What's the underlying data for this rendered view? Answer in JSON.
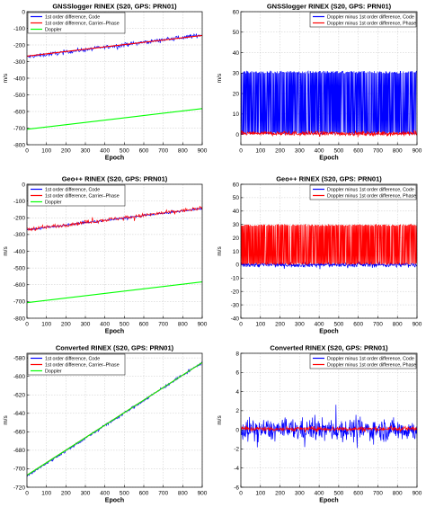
{
  "chart_data": [
    {
      "type": "line",
      "title": "GNSSlogger RINEX (S20, GPS: PRN01)",
      "xlabel": "Epoch",
      "ylabel": "m/s",
      "xlim": [
        0,
        900
      ],
      "ylim": [
        -800,
        0
      ],
      "xticks": [
        "0",
        "100",
        "200",
        "300",
        "400",
        "500",
        "600",
        "700",
        "800",
        "900"
      ],
      "yticks": [
        "0",
        "-100",
        "-200",
        "-300",
        "-400",
        "-500",
        "-600",
        "-700",
        "-800"
      ],
      "grid": true,
      "legend_position": "top-left",
      "series": [
        {
          "name": "1st order difference, Code",
          "color": "#0000ff",
          "style": "noisy",
          "start": -272,
          "end": -140,
          "noise": 12
        },
        {
          "name": "1st order difference, Carrier–Phase",
          "color": "#ff0000",
          "style": "line",
          "start": -267,
          "end": -143,
          "noise": 0
        },
        {
          "name": "Doppler",
          "color": "#00ff00",
          "style": "line",
          "start": -707,
          "end": -583,
          "noise": 0
        }
      ]
    },
    {
      "type": "line",
      "title": "GNSSlogger RINEX (S20, GPS: PRN01)",
      "xlabel": "Epoch",
      "ylabel": "m/s",
      "xlim": [
        0,
        900
      ],
      "ylim": [
        -5,
        60
      ],
      "xticks": [
        "0",
        "100",
        "200",
        "300",
        "400",
        "500",
        "600",
        "700",
        "800",
        "900"
      ],
      "yticks": [
        "60",
        "50",
        "40",
        "30",
        "20",
        "10",
        "0"
      ],
      "grid": true,
      "legend_position": "top-right",
      "series": [
        {
          "name": "Doppler minus 1st order difference, Code",
          "color": "#0000ff",
          "style": "dense",
          "low": 0,
          "high": 31
        },
        {
          "name": "Doppler minus 1st order difference, Phase",
          "color": "#ff0000",
          "style": "flat",
          "level": 0.5,
          "noise": 1.2
        }
      ]
    },
    {
      "type": "line",
      "title": "Geo++ RINEX (S20, GPS: PRN01)",
      "xlabel": "Epoch",
      "ylabel": "m/s",
      "xlim": [
        0,
        900
      ],
      "ylim": [
        -800,
        0
      ],
      "xticks": [
        "0",
        "100",
        "200",
        "300",
        "400",
        "500",
        "600",
        "700",
        "800",
        "900"
      ],
      "yticks": [
        "0",
        "-100",
        "-200",
        "-300",
        "-400",
        "-500",
        "-600",
        "-700",
        "-800"
      ],
      "grid": true,
      "legend_position": "top-left",
      "series": [
        {
          "name": "1st order difference, Code",
          "color": "#0000ff",
          "style": "noisy",
          "start": -272,
          "end": -145,
          "noise": 6
        },
        {
          "name": "1st order difference, Carrier–Phase",
          "color": "#ff0000",
          "style": "noisy",
          "start": -270,
          "end": -143,
          "noise": 12
        },
        {
          "name": "Doppler",
          "color": "#00ff00",
          "style": "line",
          "start": -707,
          "end": -583,
          "noise": 0
        }
      ]
    },
    {
      "type": "line",
      "title": "Geo++ RINEX (S20, GPS: PRN01)",
      "xlabel": "Epoch",
      "ylabel": "m/s",
      "xlim": [
        0,
        900
      ],
      "ylim": [
        -40,
        60
      ],
      "xticks": [
        "0",
        "100",
        "200",
        "300",
        "400",
        "500",
        "600",
        "700",
        "800",
        "900"
      ],
      "yticks": [
        "60",
        "50",
        "40",
        "30",
        "20",
        "10",
        "0",
        "-10",
        "-20",
        "-30",
        "-40"
      ],
      "grid": true,
      "legend_position": "top-right",
      "series": [
        {
          "name": "Doppler minus 1st order difference, Code",
          "color": "#0000ff",
          "style": "flat",
          "level": 0,
          "noise": 2
        },
        {
          "name": "Doppler minus 1st order difference, Phase",
          "color": "#ff0000",
          "style": "dense",
          "low": 0,
          "high": 30
        }
      ]
    },
    {
      "type": "line",
      "title": "Converted RINEX (S20, GPS: PRN01)",
      "xlabel": "Epoch",
      "ylabel": "m/s",
      "xlim": [
        0,
        900
      ],
      "ylim": [
        -720,
        -575
      ],
      "xticks": [
        "0",
        "100",
        "200",
        "300",
        "400",
        "500",
        "600",
        "700",
        "800",
        "900"
      ],
      "yticks": [
        "-580",
        "-600",
        "-620",
        "-640",
        "-660",
        "-680",
        "-700",
        "-720"
      ],
      "grid": true,
      "legend_position": "top-left",
      "series": [
        {
          "name": "1st order difference, Code",
          "color": "#0000ff",
          "style": "noisy",
          "start": -708,
          "end": -585,
          "noise": 1.5
        },
        {
          "name": "1st order difference, Carrier–Phase",
          "color": "#ff0000",
          "style": "line",
          "start": -707,
          "end": -585,
          "noise": 0
        },
        {
          "name": "Doppler",
          "color": "#00ff00",
          "style": "line",
          "start": -707,
          "end": -585,
          "noise": 0
        }
      ]
    },
    {
      "type": "line",
      "title": "Converted RINEX (S20, GPS: PRN01)",
      "xlabel": "Epoch",
      "ylabel": "m/s",
      "xlim": [
        0,
        900
      ],
      "ylim": [
        -6,
        8
      ],
      "xticks": [
        "0",
        "100",
        "200",
        "300",
        "400",
        "500",
        "600",
        "700",
        "800",
        "900"
      ],
      "yticks": [
        "8",
        "6",
        "4",
        "2",
        "0",
        "-2",
        "-4",
        "-6"
      ],
      "grid": true,
      "legend_position": "top-right",
      "series": [
        {
          "name": "Doppler minus 1st order difference, Code",
          "color": "#0000ff",
          "style": "flat",
          "level": 0,
          "noise": 1.2
        },
        {
          "name": "Doppler minus 1st order difference, Phase",
          "color": "#ff0000",
          "style": "flat",
          "level": 0.1,
          "noise": 0.25
        }
      ]
    }
  ]
}
